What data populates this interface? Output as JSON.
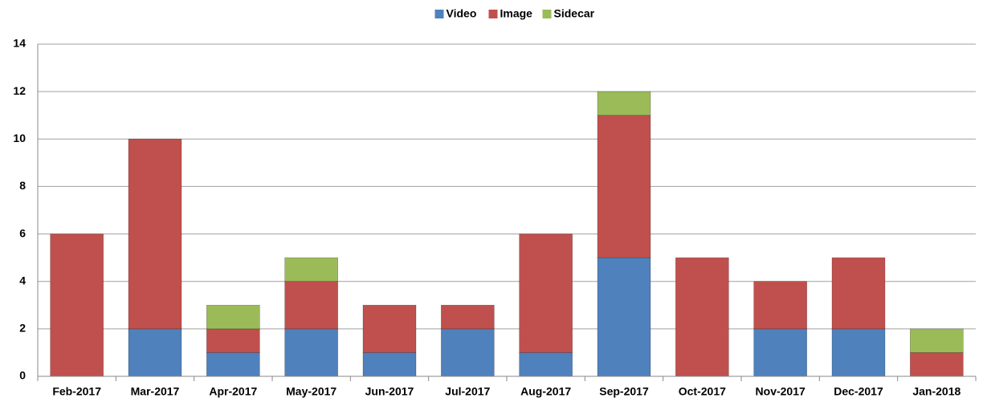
{
  "chart_data": {
    "type": "stacked_bar",
    "categories": [
      "Feb-2017",
      "Mar-2017",
      "Apr-2017",
      "May-2017",
      "Jun-2017",
      "Jul-2017",
      "Aug-2017",
      "Sep-2017",
      "Oct-2017",
      "Nov-2017",
      "Dec-2017",
      "Jan-2018"
    ],
    "series": [
      {
        "name": "Video",
        "color": "#4f81bd",
        "values": [
          0,
          2,
          1,
          2,
          1,
          2,
          1,
          5,
          0,
          2,
          2,
          0
        ]
      },
      {
        "name": "Image",
        "color": "#c0504d",
        "values": [
          6,
          8,
          1,
          2,
          2,
          1,
          5,
          6,
          5,
          2,
          3,
          1
        ]
      },
      {
        "name": "Sidecar",
        "color": "#9bbb59",
        "values": [
          0,
          0,
          1,
          1,
          0,
          0,
          0,
          1,
          0,
          0,
          0,
          1
        ]
      }
    ],
    "ylim": [
      0,
      14
    ],
    "yticks": [
      0,
      2,
      4,
      6,
      8,
      10,
      12,
      14
    ],
    "grid": true,
    "legend": "top"
  }
}
